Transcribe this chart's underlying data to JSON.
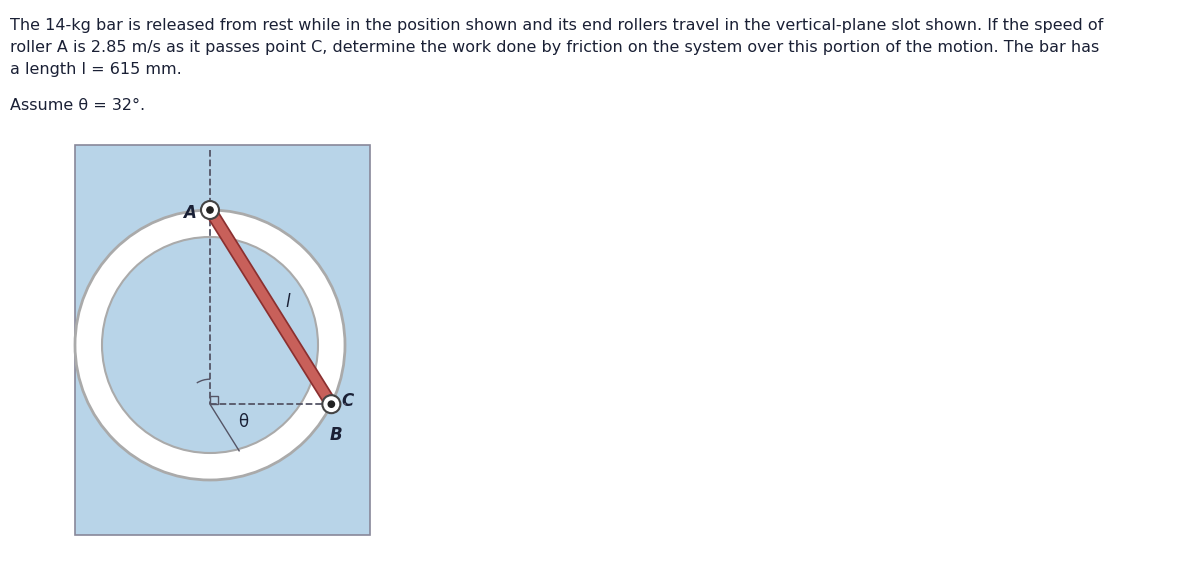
{
  "line1": "The 14-kg bar is released from rest while in the position shown and its end rollers travel in the vertical-plane slot shown. If the speed of",
  "line2": "roller A is 2.85 m/s as it passes point C, determine the work done by friction on the system over this portion of the motion. The bar has",
  "line3": "a length l = 615 mm.",
  "assume_text": "Assume θ = 32°.",
  "bg_color": "#b8d4e8",
  "bar_color": "#c8605a",
  "bar_edge_color": "#8b3030",
  "dashed_color": "#555566",
  "text_color": "#1a2035",
  "theta_deg": 32,
  "text_fontsize": 11.5,
  "label_fontsize": 12,
  "bar_lw": 7
}
